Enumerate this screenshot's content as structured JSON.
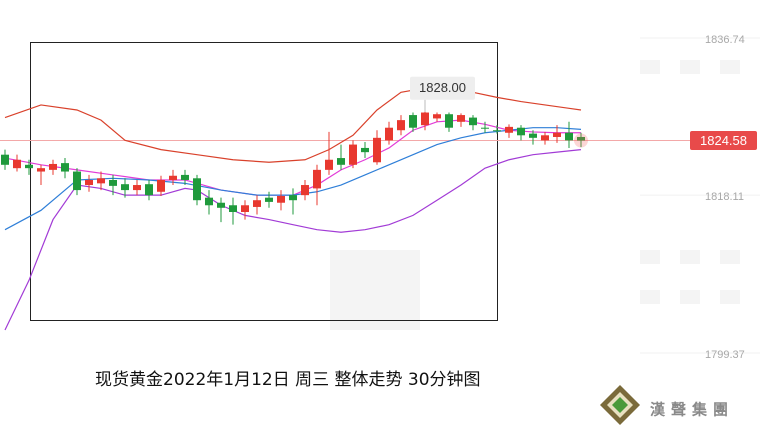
{
  "chart_data": {
    "type": "candlestick",
    "title": "现货黄金2022年1月12日 周三 整体走势  30分钟图",
    "open": [
      1822.9,
      1821.3,
      1821.7,
      1820.9,
      1821.1,
      1821.9,
      1820.9,
      1819.3,
      1819.5,
      1819.9,
      1819.4,
      1818.7,
      1819.4,
      1818.5,
      1819.9,
      1820.5,
      1820.1,
      1817.8,
      1817.2,
      1816.9,
      1816.1,
      1816.7,
      1817.8,
      1817.2,
      1818.1,
      1818.1,
      1818.9,
      1821.1,
      1822.5,
      1821.7,
      1823.7,
      1822.0,
      1824.6,
      1825.8,
      1827.6,
      1826.4,
      1827.2,
      1827.7,
      1826.8,
      1827.3,
      1826.1,
      1825.8,
      1825.5,
      1826.1,
      1825.4,
      1824.6,
      1825.0,
      1825.5,
      1825.0
    ],
    "high": [
      1823.5,
      1822.9,
      1822.3,
      1821.7,
      1822.3,
      1822.5,
      1821.3,
      1820.5,
      1820.9,
      1820.5,
      1820.1,
      1819.9,
      1819.9,
      1820.4,
      1821.1,
      1821.1,
      1820.5,
      1818.7,
      1817.8,
      1817.8,
      1817.5,
      1818.1,
      1818.5,
      1818.7,
      1818.9,
      1819.9,
      1821.7,
      1825.6,
      1824.1,
      1824.6,
      1824.4,
      1825.8,
      1826.8,
      1827.6,
      1827.9,
      1828.0,
      1827.9,
      1827.9,
      1827.8,
      1827.6,
      1826.8,
      1826.4,
      1826.5,
      1826.4,
      1825.8,
      1825.6,
      1826.4,
      1826.8,
      1825.5
    ],
    "low": [
      1821.1,
      1820.9,
      1820.5,
      1819.3,
      1820.5,
      1820.1,
      1818.1,
      1818.5,
      1818.7,
      1818.1,
      1817.8,
      1818.1,
      1817.5,
      1818.0,
      1819.3,
      1819.3,
      1816.9,
      1815.8,
      1814.9,
      1814.6,
      1815.2,
      1815.8,
      1816.6,
      1816.3,
      1815.8,
      1817.5,
      1816.9,
      1820.5,
      1821.1,
      1821.3,
      1822.5,
      1821.7,
      1824.1,
      1825.2,
      1825.6,
      1825.8,
      1826.8,
      1825.6,
      1826.2,
      1825.8,
      1825.5,
      1825.4,
      1824.9,
      1824.6,
      1824.1,
      1824.1,
      1824.3,
      1823.7,
      1823.8
    ],
    "close": [
      1821.7,
      1822.3,
      1821.3,
      1821.3,
      1821.8,
      1820.9,
      1818.7,
      1819.9,
      1820.1,
      1819.2,
      1818.7,
      1819.3,
      1818.1,
      1819.9,
      1820.4,
      1819.9,
      1817.5,
      1816.9,
      1816.6,
      1816.1,
      1816.9,
      1817.5,
      1817.3,
      1818.0,
      1817.5,
      1819.3,
      1821.1,
      1822.3,
      1821.7,
      1824.1,
      1823.2,
      1824.9,
      1826.1,
      1827.0,
      1826.1,
      1827.9,
      1827.7,
      1826.1,
      1827.6,
      1826.4,
      1826.0,
      1825.7,
      1826.2,
      1825.2,
      1824.9,
      1825.2,
      1825.5,
      1824.6,
      1824.58
    ],
    "up_color": "#e8382f",
    "down_color": "#1f9a3c",
    "overlays": [
      {
        "color": "#d9412b",
        "x": [
          0,
          3,
          6,
          8,
          10,
          13,
          16,
          19,
          22,
          25,
          27,
          29,
          31,
          33,
          35,
          37,
          39,
          41,
          43,
          45,
          47,
          48
        ],
        "values": [
          1827.3,
          1828.8,
          1828.2,
          1827.0,
          1824.6,
          1823.5,
          1822.9,
          1822.3,
          1822.0,
          1822.3,
          1823.5,
          1825.2,
          1828.2,
          1830.3,
          1830.8,
          1830.8,
          1830.3,
          1829.7,
          1829.2,
          1828.8,
          1828.4,
          1828.2
        ]
      },
      {
        "color": "#a23bd6",
        "x": [
          0,
          2,
          4,
          6,
          8,
          10,
          13,
          15,
          16,
          18,
          20,
          22,
          24,
          26,
          28,
          30,
          32,
          34,
          36,
          38,
          40,
          42,
          44,
          46,
          48
        ],
        "values": [
          1802.1,
          1808.0,
          1815.2,
          1819.3,
          1818.9,
          1818.1,
          1818.1,
          1818.9,
          1818.7,
          1816.9,
          1815.7,
          1815.2,
          1814.6,
          1814.0,
          1813.7,
          1814.0,
          1814.6,
          1815.7,
          1817.5,
          1819.3,
          1821.3,
          1822.3,
          1822.9,
          1823.2,
          1823.5
        ]
      },
      {
        "color": "#e23cd8",
        "x": [
          0,
          3,
          6,
          9,
          12,
          15,
          18,
          21,
          24,
          26,
          28,
          30,
          32,
          34,
          36,
          38,
          40,
          42,
          44,
          46,
          48
        ],
        "values": [
          1822.5,
          1821.7,
          1821.1,
          1820.5,
          1819.9,
          1819.9,
          1818.7,
          1818.1,
          1818.1,
          1819.3,
          1821.1,
          1822.3,
          1823.7,
          1825.8,
          1826.8,
          1827.0,
          1826.5,
          1825.8,
          1825.6,
          1825.5,
          1825.5
        ]
      },
      {
        "color": "#2f7fd8",
        "x": [
          0,
          3,
          6,
          9,
          12,
          15,
          18,
          21,
          24,
          26,
          28,
          30,
          32,
          34,
          36,
          38,
          40,
          42,
          44,
          46,
          48
        ],
        "values": [
          1814.0,
          1816.3,
          1819.9,
          1820.1,
          1819.9,
          1819.5,
          1818.7,
          1818.1,
          1818.1,
          1818.5,
          1819.3,
          1820.5,
          1821.7,
          1822.9,
          1824.1,
          1824.9,
          1825.5,
          1825.8,
          1826.1,
          1826.1,
          1825.9
        ]
      }
    ],
    "ylim": [
      1790.24,
      1841.25
    ],
    "yticks": [
      1799.37,
      1818.11,
      1836.74
    ],
    "last_price": 1824.58,
    "high_label": {
      "value": 1828,
      "label": "1828.00"
    }
  },
  "logo": "漢聲集團"
}
